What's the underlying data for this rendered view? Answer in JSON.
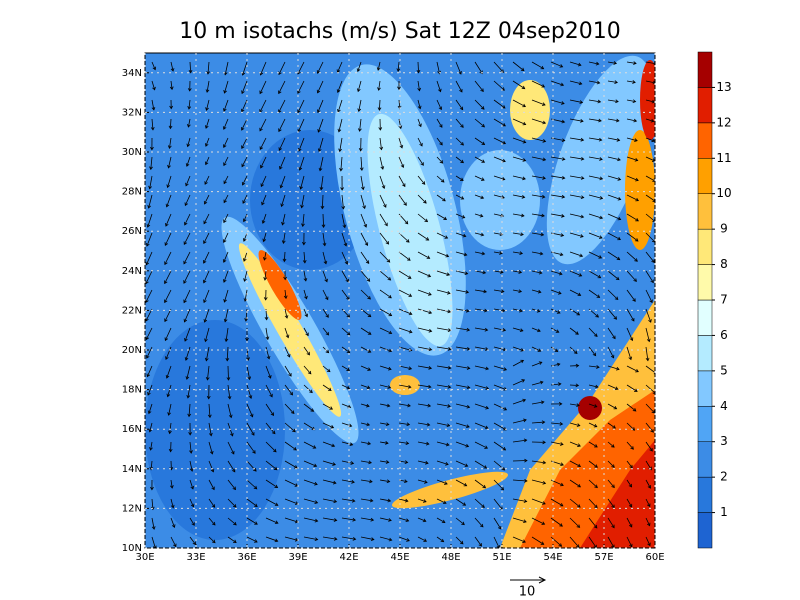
{
  "title": "10 m isotachs (m/s) Sat 12Z 04sep2010",
  "map": {
    "lonlim": [
      30,
      60
    ],
    "latlim": [
      10,
      35
    ],
    "lonticks": [
      {
        "value": 30,
        "label": "30E"
      },
      {
        "value": 33,
        "label": "33E"
      },
      {
        "value": 36,
        "label": "36E"
      },
      {
        "value": 39,
        "label": "39E"
      },
      {
        "value": 42,
        "label": "42E"
      },
      {
        "value": 45,
        "label": "45E"
      },
      {
        "value": 48,
        "label": "48E"
      },
      {
        "value": 51,
        "label": "51E"
      },
      {
        "value": 54,
        "label": "54E"
      },
      {
        "value": 57,
        "label": "57E"
      },
      {
        "value": 60,
        "label": "60E"
      }
    ],
    "latticks": [
      {
        "value": 10,
        "label": "10N"
      },
      {
        "value": 12,
        "label": "12N"
      },
      {
        "value": 14,
        "label": "14N"
      },
      {
        "value": 16,
        "label": "16N"
      },
      {
        "value": 18,
        "label": "18N"
      },
      {
        "value": 20,
        "label": "20N"
      },
      {
        "value": 22,
        "label": "22N"
      },
      {
        "value": 24,
        "label": "24N"
      },
      {
        "value": 26,
        "label": "26N"
      },
      {
        "value": 28,
        "label": "28N"
      },
      {
        "value": 30,
        "label": "30N"
      },
      {
        "value": 32,
        "label": "32N"
      },
      {
        "value": 34,
        "label": "34N"
      }
    ]
  },
  "colorbar": {
    "lim": [
      0,
      14
    ],
    "ticks": [
      1,
      2,
      3,
      4,
      5,
      6,
      7,
      8,
      9,
      10,
      11,
      12,
      13
    ],
    "colors": [
      "#1e64d2",
      "#2878dc",
      "#3c8ce6",
      "#50a5f5",
      "#82c8ff",
      "#b4ebff",
      "#e1ffff",
      "#fffaaa",
      "#ffe878",
      "#ffc03c",
      "#ffa000",
      "#ff6400",
      "#e11e00",
      "#a50000"
    ]
  },
  "reference_vector": {
    "label": "10"
  }
}
